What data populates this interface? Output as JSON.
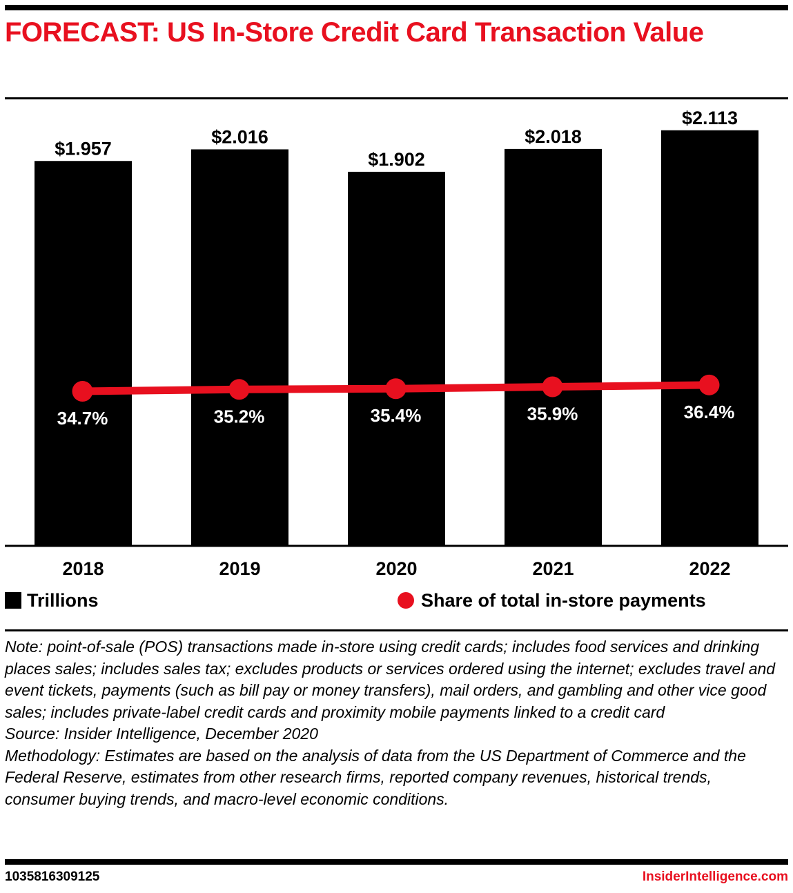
{
  "title": "FORECAST: US In-Store Credit Card Transaction Value",
  "chart_data": {
    "type": "bar",
    "title": "FORECAST: US In-Store Credit Card Transaction Value",
    "xlabel": "",
    "ylabel": "",
    "categories": [
      "2018",
      "2019",
      "2020",
      "2021",
      "2022"
    ],
    "series": [
      {
        "name": "Trillions",
        "type": "bar",
        "color": "#000000",
        "values": [
          1.957,
          2.016,
          1.902,
          2.018,
          2.113
        ],
        "labels": [
          "$1.957",
          "$2.016",
          "$1.902",
          "$2.018",
          "$2.113"
        ]
      },
      {
        "name": "Share of total in-store payments",
        "type": "line",
        "color": "#e8101f",
        "values": [
          34.7,
          35.2,
          35.4,
          35.9,
          36.4
        ],
        "labels": [
          "34.7%",
          "35.2%",
          "35.4%",
          "35.9%",
          "36.4%"
        ]
      }
    ],
    "ylim": [
      0,
      2.2
    ],
    "grid": false,
    "legend_position": "bottom"
  },
  "legend": {
    "bars_label": "Trillions",
    "line_label": "Share of total in-store payments"
  },
  "notes": {
    "note": "Note: point-of-sale (POS) transactions made in-store using credit cards; includes food services and drinking places sales; includes sales tax; excludes products or services ordered using the internet; excludes travel and event tickets, payments (such as bill pay or money transfers), mail orders, and gambling and other vice good sales; includes private-label credit cards and proximity mobile payments linked to a credit card",
    "source": "Source: Insider Intelligence, December 2020",
    "methodology": "Methodology: Estimates are based on the analysis of data from the US Department of Commerce and the Federal Reserve, estimates from other research firms, reported company revenues, historical trends, consumer buying trends, and macro-level economic conditions."
  },
  "footer": {
    "chart_id": "1035816309125",
    "brand": "InsiderIntelligence.com"
  }
}
